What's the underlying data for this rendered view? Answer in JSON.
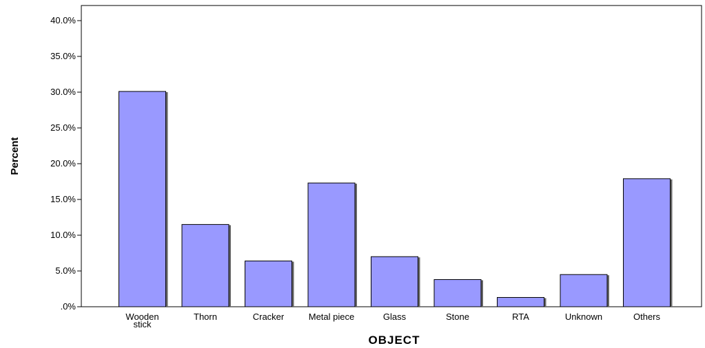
{
  "chart_data": {
    "type": "bar",
    "title": "",
    "xlabel": "OBJECT",
    "ylabel": "Percent",
    "categories": [
      [
        "Wooden",
        "stick"
      ],
      [
        "Thorn"
      ],
      [
        "Cracker"
      ],
      [
        "Metal piece"
      ],
      [
        "Glass"
      ],
      [
        "Stone"
      ],
      [
        "RTA"
      ],
      [
        "Unknown"
      ],
      [
        "Others"
      ]
    ],
    "values": [
      30.1,
      11.5,
      6.4,
      17.3,
      7.0,
      3.8,
      1.3,
      4.5,
      17.9
    ],
    "ylim": [
      0,
      40
    ],
    "yticks": [
      0,
      5,
      10,
      15,
      20,
      25,
      30,
      35,
      40
    ],
    "ytick_labels": [
      ".0%",
      "5.0%",
      "10.0%",
      "15.0%",
      "20.0%",
      "25.0%",
      "30.0%",
      "35.0%",
      "40.0%"
    ],
    "grid": false,
    "legend": "none",
    "bar_color": "#9999ff",
    "bar_edge_color": "#000000",
    "bar_shadow_color": "#666666"
  }
}
